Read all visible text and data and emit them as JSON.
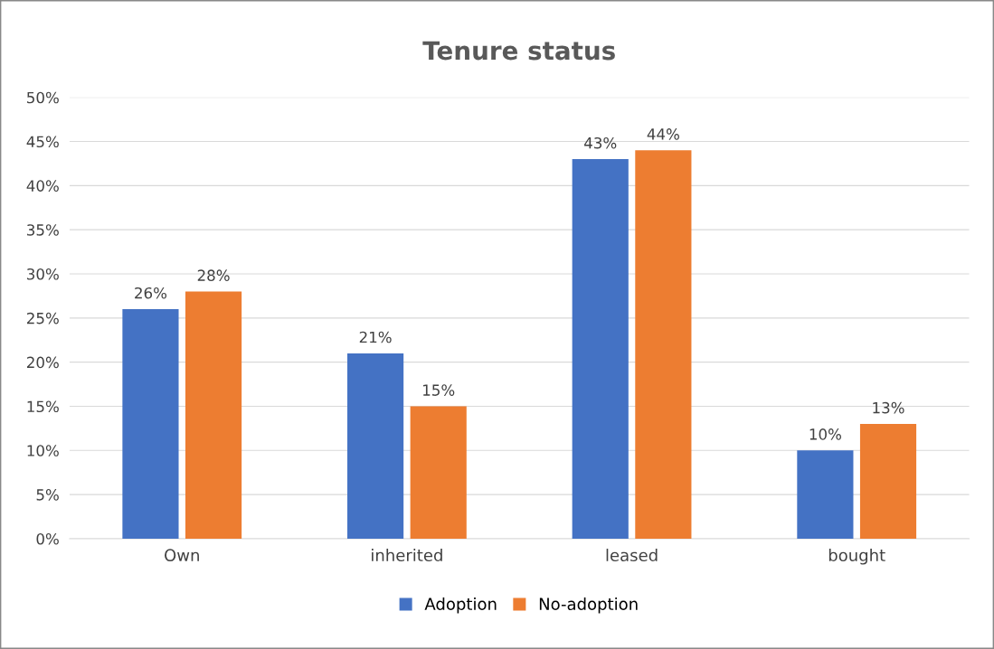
{
  "chart_data": {
    "type": "bar",
    "title": "Tenure status",
    "categories": [
      "Own",
      "inherited",
      "leased",
      "bought"
    ],
    "series": [
      {
        "name": "Adoption",
        "color": "#4472c4",
        "values": [
          26,
          21,
          43,
          10
        ],
        "value_labels": [
          "26%",
          "21%",
          "43%",
          "10%"
        ]
      },
      {
        "name": "No-adoption",
        "color": "#ed7d31",
        "values": [
          28,
          15,
          44,
          13
        ],
        "value_labels": [
          "28%",
          "15%",
          "44%",
          "13%"
        ]
      }
    ],
    "ylim": [
      0,
      50
    ],
    "yticks": [
      {
        "value": 0,
        "label": "0%"
      },
      {
        "value": 5,
        "label": "5%"
      },
      {
        "value": 10,
        "label": "10%"
      },
      {
        "value": 15,
        "label": "15%"
      },
      {
        "value": 20,
        "label": "20%"
      },
      {
        "value": 25,
        "label": "25%"
      },
      {
        "value": 30,
        "label": "30%"
      },
      {
        "value": 35,
        "label": "35%"
      },
      {
        "value": 40,
        "label": "40%"
      },
      {
        "value": 45,
        "label": "45%"
      },
      {
        "value": 50,
        "label": "50%"
      }
    ],
    "grid": "y",
    "legend": "bottom"
  }
}
